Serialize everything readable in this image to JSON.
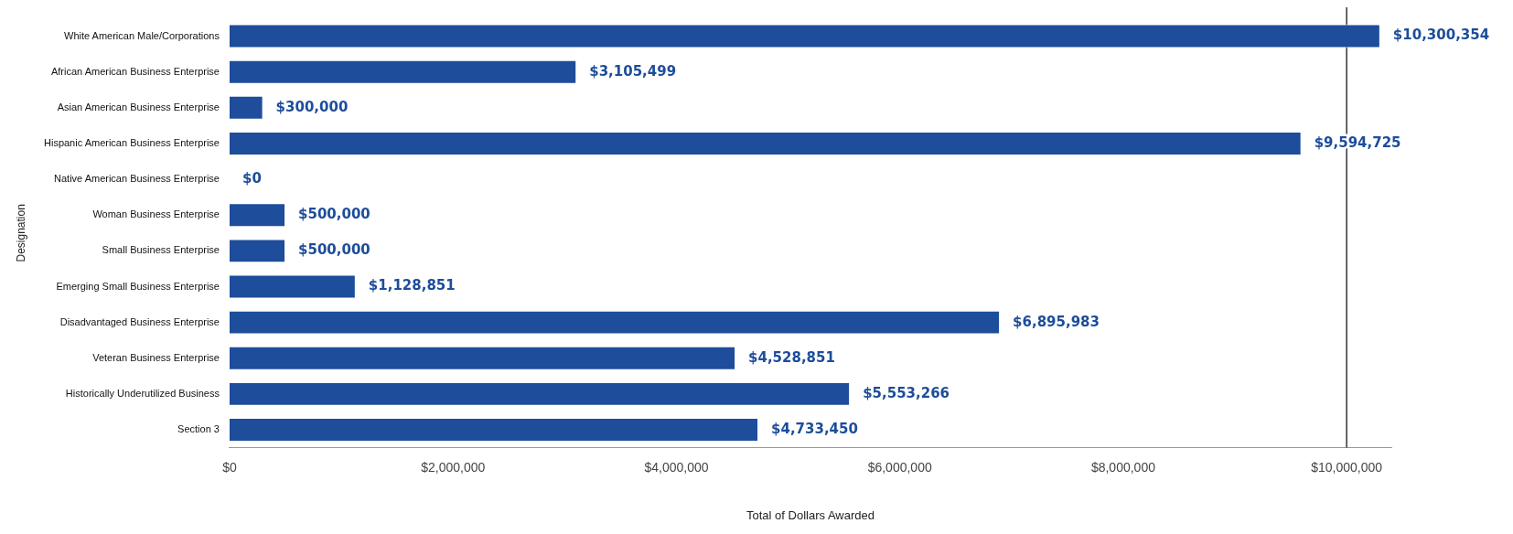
{
  "chart_data": {
    "type": "bar",
    "orientation": "horizontal",
    "xlabel": "Total of Dollars Awarded",
    "ylabel": "Designation",
    "categories": [
      "White American Male/Corporations",
      "African American Business Enterprise",
      "Asian American Business Enterprise",
      "Hispanic American Business Enterprise",
      "Native American Business Enterprise",
      "Woman Business Enterprise",
      "Small Business Enterprise",
      "Emerging Small Business Enterprise",
      "Disadvantaged Business Enterprise",
      "Veteran Business Enterprise",
      "Historically Underutilized Business",
      "Section 3"
    ],
    "values": [
      10300354,
      3105499,
      300000,
      9594725,
      0,
      500000,
      500000,
      1128851,
      6895983,
      4528851,
      5553266,
      4733450
    ],
    "value_labels": [
      "$10,300,354",
      "$3,105,499",
      "$300,000",
      "$9,594,725",
      "$0",
      "$500,000",
      "$500,000",
      "$1,128,851",
      "$6,895,983",
      "$4,528,851",
      "$5,553,266",
      "$4,733,450"
    ],
    "color": "#1d4d9b",
    "xlim": [
      0,
      10400000
    ],
    "xticks": [
      {
        "value": 0,
        "label": "$0"
      },
      {
        "value": 2000000,
        "label": "$2,000,000"
      },
      {
        "value": 4000000,
        "label": "$4,000,000"
      },
      {
        "value": 6000000,
        "label": "$6,000,000"
      },
      {
        "value": 8000000,
        "label": "$8,000,000"
      },
      {
        "value": 10000000,
        "label": "$10,000,000"
      }
    ],
    "ref_lines": [
      {
        "axis": "x",
        "value": 10000000,
        "color": "#333333"
      }
    ],
    "grid": false,
    "legend": false
  }
}
